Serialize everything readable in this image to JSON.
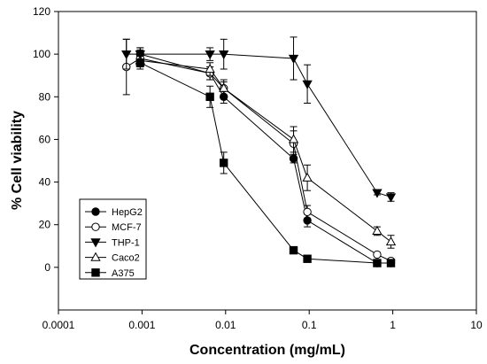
{
  "chart_data": {
    "type": "scatter",
    "xlabel": "Concentration (mg/mL)",
    "ylabel": "% Cell viability",
    "xscale": "log",
    "xlim": [
      0.0001,
      10
    ],
    "ylim": [
      -20,
      120
    ],
    "x_ticks": [
      {
        "value": 0.0001,
        "label": "0.0001"
      },
      {
        "value": 0.001,
        "label": "0.001"
      },
      {
        "value": 0.01,
        "label": "0.01"
      },
      {
        "value": 0.1,
        "label": "0.1"
      },
      {
        "value": 1,
        "label": "1"
      },
      {
        "value": 10,
        "label": "10"
      }
    ],
    "y_ticks": [
      {
        "value": 0,
        "label": "0"
      },
      {
        "value": 20,
        "label": "20"
      },
      {
        "value": 40,
        "label": "40"
      },
      {
        "value": 60,
        "label": "60"
      },
      {
        "value": 80,
        "label": "80"
      },
      {
        "value": 100,
        "label": "100"
      },
      {
        "value": 120,
        "label": "120"
      }
    ],
    "grid": false,
    "legend_position": "bottom-left",
    "series": [
      {
        "name": "HepG2",
        "marker": "circle-filled",
        "x": [
          0.00095,
          0.0065,
          0.0095,
          0.065,
          0.095,
          0.65,
          0.95
        ],
        "y": [
          100,
          91,
          80,
          51,
          22,
          2,
          2
        ],
        "err": [
          3,
          3,
          3,
          2,
          3,
          1,
          1
        ]
      },
      {
        "name": "MCF-7",
        "marker": "circle-open",
        "x": [
          0.00065,
          0.00095,
          0.0065,
          0.0095,
          0.065,
          0.095,
          0.65,
          0.95
        ],
        "y": [
          94,
          98,
          91,
          84,
          58,
          26,
          6,
          3
        ],
        "err": [
          13,
          4,
          3,
          3,
          6,
          3,
          1,
          1
        ]
      },
      {
        "name": "THP-1",
        "marker": "triangle-down-filled",
        "x": [
          0.00065,
          0.00095,
          0.0065,
          0.0095,
          0.065,
          0.095,
          0.65,
          0.95
        ],
        "y": [
          100,
          100,
          100,
          100,
          98,
          86,
          35,
          33
        ],
        "err": [
          7,
          3,
          3,
          7,
          10,
          9,
          1,
          2
        ]
      },
      {
        "name": "Caco2",
        "marker": "triangle-up-open",
        "x": [
          0.00095,
          0.0065,
          0.0095,
          0.065,
          0.095,
          0.65,
          0.95
        ],
        "y": [
          97,
          93,
          84,
          60,
          42,
          17,
          12
        ],
        "err": [
          2,
          3,
          4,
          6,
          6,
          2,
          3
        ]
      },
      {
        "name": "A375",
        "marker": "square-filled",
        "x": [
          0.00095,
          0.0065,
          0.0095,
          0.065,
          0.095,
          0.65,
          0.95
        ],
        "y": [
          96,
          80,
          49,
          8,
          4,
          2,
          2
        ],
        "err": [
          3,
          5,
          5,
          1,
          1,
          1,
          1
        ]
      }
    ]
  }
}
